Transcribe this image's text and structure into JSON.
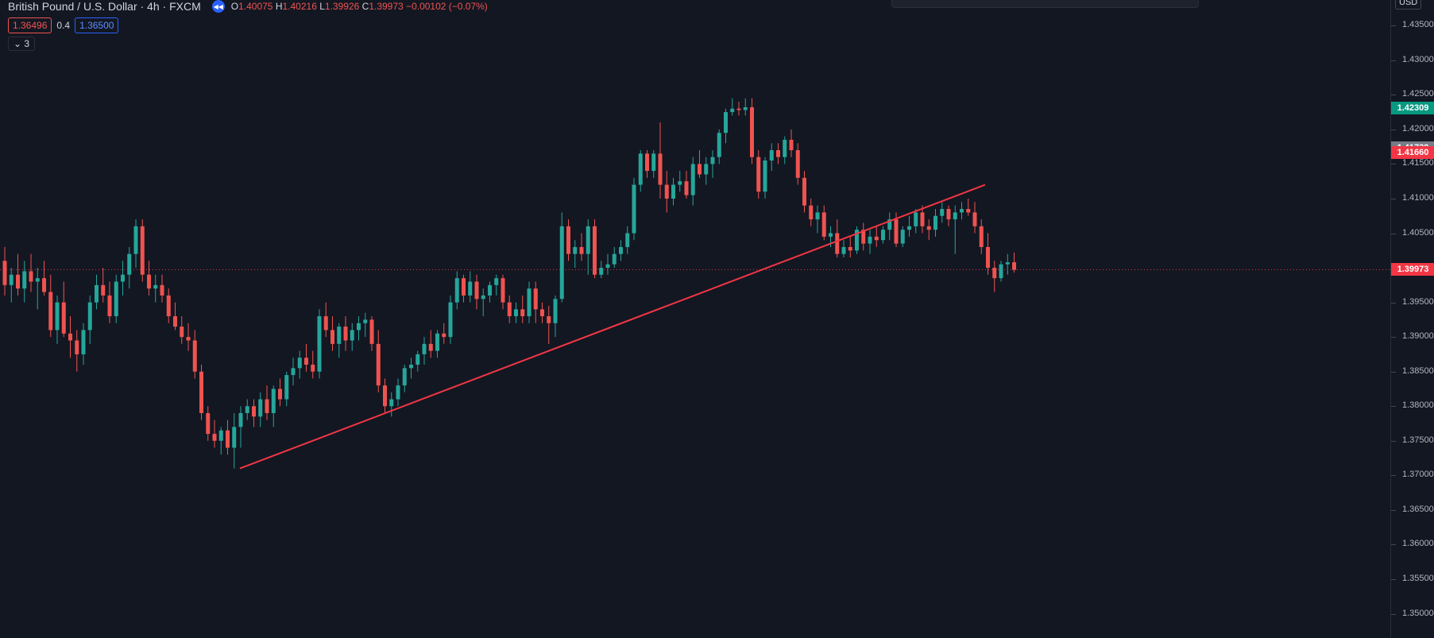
{
  "header": {
    "symbol": "British Pound / U.S. Dollar · 4h · FXCM",
    "ohlc_o_label": "O",
    "ohlc_o": "1.40075",
    "ohlc_h_label": "H",
    "ohlc_h": "1.40216",
    "ohlc_l_label": "L",
    "ohlc_l": "1.39926",
    "ohlc_c_label": "C",
    "ohlc_c": "1.39973",
    "change": "−0.00102 (−0.07%)"
  },
  "quote": {
    "bid": "1.36496",
    "spread": "0.4",
    "ask": "1.36500"
  },
  "indicators_toggle": {
    "count": "3"
  },
  "currency_button": "USD",
  "price_axis": {
    "ticks": [
      "1.43500",
      "1.43000",
      "1.42500",
      "1.42000",
      "1.41500",
      "1.41000",
      "1.40500",
      "1.40000",
      "1.39500",
      "1.39000",
      "1.38500",
      "1.38000",
      "1.37500",
      "1.37000",
      "1.36500",
      "1.36000",
      "1.35500",
      "1.35000"
    ],
    "labels": [
      {
        "text": "1.42309",
        "color": "#089981"
      },
      {
        "text": "1.41730",
        "color": "#787b86"
      },
      {
        "text": "1.41660",
        "color": "#f23645"
      },
      {
        "text": "1.39973",
        "color": "#f23645"
      }
    ]
  },
  "colors": {
    "up": "#26a69a",
    "down": "#ef5350",
    "background": "#131722",
    "trendline": "#f23645"
  },
  "chart_data": {
    "type": "candlestick",
    "last_price": 1.39973,
    "ylim": [
      1.3465,
      1.4387
    ],
    "trendline": {
      "from_price": 1.371,
      "to_price": 1.412
    },
    "candles": [
      [
        1.401,
        1.403,
        1.396,
        1.3975
      ],
      [
        1.3975,
        1.4,
        1.395,
        1.399
      ],
      [
        1.399,
        1.402,
        1.396,
        1.397
      ],
      [
        1.397,
        1.401,
        1.395,
        1.3995
      ],
      [
        1.3995,
        1.402,
        1.3965,
        1.398
      ],
      [
        1.398,
        1.4,
        1.394,
        1.3985
      ],
      [
        1.3985,
        1.401,
        1.396,
        1.3965
      ],
      [
        1.3965,
        1.399,
        1.39,
        1.391
      ],
      [
        1.391,
        1.396,
        1.389,
        1.395
      ],
      [
        1.395,
        1.398,
        1.39,
        1.3905
      ],
      [
        1.3905,
        1.393,
        1.387,
        1.3895
      ],
      [
        1.3895,
        1.391,
        1.385,
        1.3875
      ],
      [
        1.3875,
        1.392,
        1.386,
        1.391
      ],
      [
        1.391,
        1.396,
        1.389,
        1.395
      ],
      [
        1.395,
        1.399,
        1.394,
        1.3975
      ],
      [
        1.3975,
        1.4,
        1.395,
        1.396
      ],
      [
        1.396,
        1.398,
        1.392,
        1.393
      ],
      [
        1.393,
        1.399,
        1.392,
        1.398
      ],
      [
        1.398,
        1.401,
        1.396,
        1.399
      ],
      [
        1.399,
        1.403,
        1.397,
        1.402
      ],
      [
        1.402,
        1.407,
        1.4,
        1.406
      ],
      [
        1.406,
        1.407,
        1.398,
        1.399
      ],
      [
        1.399,
        1.401,
        1.396,
        1.397
      ],
      [
        1.397,
        1.399,
        1.395,
        1.3975
      ],
      [
        1.3975,
        1.399,
        1.395,
        1.396
      ],
      [
        1.396,
        1.397,
        1.392,
        1.393
      ],
      [
        1.393,
        1.395,
        1.391,
        1.3915
      ],
      [
        1.3915,
        1.393,
        1.389,
        1.39
      ],
      [
        1.39,
        1.392,
        1.388,
        1.3895
      ],
      [
        1.3895,
        1.391,
        1.384,
        1.385
      ],
      [
        1.385,
        1.386,
        1.378,
        1.379
      ],
      [
        1.379,
        1.38,
        1.375,
        1.376
      ],
      [
        1.376,
        1.378,
        1.374,
        1.375
      ],
      [
        1.375,
        1.377,
        1.373,
        1.3765
      ],
      [
        1.3765,
        1.378,
        1.373,
        1.374
      ],
      [
        1.374,
        1.379,
        1.371,
        1.377
      ],
      [
        1.377,
        1.38,
        1.374,
        1.379
      ],
      [
        1.379,
        1.381,
        1.378,
        1.38
      ],
      [
        1.38,
        1.381,
        1.377,
        1.3785
      ],
      [
        1.3785,
        1.382,
        1.377,
        1.381
      ],
      [
        1.381,
        1.383,
        1.378,
        1.379
      ],
      [
        1.379,
        1.383,
        1.377,
        1.3825
      ],
      [
        1.3825,
        1.384,
        1.38,
        1.381
      ],
      [
        1.381,
        1.385,
        1.38,
        1.3845
      ],
      [
        1.3845,
        1.387,
        1.383,
        1.3855
      ],
      [
        1.3855,
        1.388,
        1.384,
        1.387
      ],
      [
        1.387,
        1.389,
        1.385,
        1.386
      ],
      [
        1.386,
        1.388,
        1.384,
        1.385
      ],
      [
        1.385,
        1.394,
        1.384,
        1.393
      ],
      [
        1.393,
        1.395,
        1.39,
        1.391
      ],
      [
        1.391,
        1.393,
        1.388,
        1.389
      ],
      [
        1.389,
        1.392,
        1.387,
        1.3915
      ],
      [
        1.3915,
        1.393,
        1.388,
        1.3895
      ],
      [
        1.3895,
        1.392,
        1.388,
        1.391
      ],
      [
        1.391,
        1.393,
        1.3895,
        1.392
      ],
      [
        1.392,
        1.3935,
        1.39,
        1.3925
      ],
      [
        1.3925,
        1.393,
        1.388,
        1.389
      ],
      [
        1.389,
        1.391,
        1.382,
        1.383
      ],
      [
        1.383,
        1.384,
        1.379,
        1.38
      ],
      [
        1.38,
        1.382,
        1.3785,
        1.381
      ],
      [
        1.381,
        1.384,
        1.38,
        1.383
      ],
      [
        1.383,
        1.386,
        1.382,
        1.3855
      ],
      [
        1.3855,
        1.387,
        1.384,
        1.386
      ],
      [
        1.386,
        1.388,
        1.385,
        1.3875
      ],
      [
        1.3875,
        1.39,
        1.386,
        1.389
      ],
      [
        1.389,
        1.391,
        1.387,
        1.388
      ],
      [
        1.388,
        1.391,
        1.387,
        1.3905
      ],
      [
        1.3905,
        1.392,
        1.389,
        1.39
      ],
      [
        1.39,
        1.396,
        1.389,
        1.395
      ],
      [
        1.395,
        1.3995,
        1.394,
        1.3985
      ],
      [
        1.3985,
        1.399,
        1.395,
        1.396
      ],
      [
        1.396,
        1.3995,
        1.395,
        1.398
      ],
      [
        1.398,
        1.399,
        1.394,
        1.3955
      ],
      [
        1.3955,
        1.397,
        1.393,
        1.396
      ],
      [
        1.396,
        1.398,
        1.395,
        1.3975
      ],
      [
        1.3975,
        1.399,
        1.396,
        1.3985
      ],
      [
        1.3985,
        1.399,
        1.394,
        1.395
      ],
      [
        1.395,
        1.396,
        1.392,
        1.393
      ],
      [
        1.393,
        1.395,
        1.392,
        1.394
      ],
      [
        1.394,
        1.396,
        1.392,
        1.393
      ],
      [
        1.393,
        1.398,
        1.392,
        1.397
      ],
      [
        1.397,
        1.398,
        1.392,
        1.394
      ],
      [
        1.394,
        1.395,
        1.392,
        1.393
      ],
      [
        1.393,
        1.3945,
        1.389,
        1.392
      ],
      [
        1.392,
        1.396,
        1.39,
        1.3955
      ],
      [
        1.3955,
        1.408,
        1.395,
        1.406
      ],
      [
        1.406,
        1.407,
        1.401,
        1.402
      ],
      [
        1.402,
        1.404,
        1.4,
        1.403
      ],
      [
        1.403,
        1.405,
        1.401,
        1.402
      ],
      [
        1.402,
        1.407,
        1.399,
        1.406
      ],
      [
        1.406,
        1.407,
        1.3985,
        1.399
      ],
      [
        1.399,
        1.401,
        1.3985,
        1.4
      ],
      [
        1.4,
        1.402,
        1.399,
        1.4005
      ],
      [
        1.4005,
        1.403,
        1.4,
        1.402
      ],
      [
        1.402,
        1.404,
        1.401,
        1.403
      ],
      [
        1.403,
        1.406,
        1.402,
        1.405
      ],
      [
        1.405,
        1.413,
        1.404,
        1.412
      ],
      [
        1.412,
        1.417,
        1.411,
        1.4165
      ],
      [
        1.4165,
        1.417,
        1.413,
        1.414
      ],
      [
        1.414,
        1.417,
        1.413,
        1.4165
      ],
      [
        1.4165,
        1.421,
        1.41,
        1.412
      ],
      [
        1.412,
        1.414,
        1.408,
        1.41
      ],
      [
        1.41,
        1.413,
        1.409,
        1.412
      ],
      [
        1.412,
        1.414,
        1.411,
        1.4125
      ],
      [
        1.4125,
        1.414,
        1.41,
        1.4105
      ],
      [
        1.4105,
        1.416,
        1.409,
        1.415
      ],
      [
        1.415,
        1.417,
        1.413,
        1.4135
      ],
      [
        1.4135,
        1.416,
        1.412,
        1.415
      ],
      [
        1.415,
        1.417,
        1.413,
        1.416
      ],
      [
        1.416,
        1.42,
        1.415,
        1.4195
      ],
      [
        1.4195,
        1.423,
        1.418,
        1.4225
      ],
      [
        1.4225,
        1.4245,
        1.422,
        1.423
      ],
      [
        1.423,
        1.424,
        1.422,
        1.4228
      ],
      [
        1.4228,
        1.4245,
        1.422,
        1.4232
      ],
      [
        1.4232,
        1.4245,
        1.415,
        1.416
      ],
      [
        1.416,
        1.417,
        1.41,
        1.411
      ],
      [
        1.411,
        1.416,
        1.41,
        1.4155
      ],
      [
        1.4155,
        1.418,
        1.414,
        1.417
      ],
      [
        1.417,
        1.418,
        1.415,
        1.416
      ],
      [
        1.416,
        1.419,
        1.415,
        1.4185
      ],
      [
        1.4185,
        1.42,
        1.416,
        1.417
      ],
      [
        1.417,
        1.418,
        1.412,
        1.413
      ],
      [
        1.413,
        1.414,
        1.408,
        1.409
      ],
      [
        1.409,
        1.41,
        1.406,
        1.407
      ],
      [
        1.407,
        1.409,
        1.405,
        1.408
      ],
      [
        1.408,
        1.409,
        1.404,
        1.4045
      ],
      [
        1.4045,
        1.406,
        1.403,
        1.405
      ],
      [
        1.405,
        1.407,
        1.4015,
        1.402
      ],
      [
        1.402,
        1.404,
        1.4015,
        1.403
      ],
      [
        1.403,
        1.4045,
        1.4015,
        1.4025
      ],
      [
        1.4025,
        1.406,
        1.402,
        1.4055
      ],
      [
        1.4055,
        1.4065,
        1.4025,
        1.4035
      ],
      [
        1.4035,
        1.4055,
        1.402,
        1.4045
      ],
      [
        1.4045,
        1.406,
        1.403,
        1.404
      ],
      [
        1.404,
        1.406,
        1.4035,
        1.4055
      ],
      [
        1.4055,
        1.408,
        1.404,
        1.407
      ],
      [
        1.407,
        1.408,
        1.403,
        1.4035
      ],
      [
        1.4035,
        1.406,
        1.403,
        1.4055
      ],
      [
        1.4055,
        1.4075,
        1.4045,
        1.406
      ],
      [
        1.406,
        1.4085,
        1.405,
        1.408
      ],
      [
        1.408,
        1.409,
        1.405,
        1.406
      ],
      [
        1.406,
        1.407,
        1.404,
        1.4055
      ],
      [
        1.4055,
        1.4085,
        1.4045,
        1.4075
      ],
      [
        1.4075,
        1.4095,
        1.4065,
        1.4085
      ],
      [
        1.4085,
        1.409,
        1.406,
        1.407
      ],
      [
        1.407,
        1.409,
        1.402,
        1.408
      ],
      [
        1.408,
        1.4095,
        1.407,
        1.4085
      ],
      [
        1.4085,
        1.41,
        1.4075,
        1.408
      ],
      [
        1.408,
        1.4095,
        1.405,
        1.406
      ],
      [
        1.406,
        1.407,
        1.402,
        1.403
      ],
      [
        1.403,
        1.405,
        1.399,
        1.4
      ],
      [
        1.4,
        1.401,
        1.3965,
        1.3985
      ],
      [
        1.3985,
        1.401,
        1.398,
        1.4005
      ],
      [
        1.4005,
        1.402,
        1.399,
        1.4008
      ],
      [
        1.4008,
        1.4022,
        1.3993,
        1.3997
      ]
    ]
  }
}
